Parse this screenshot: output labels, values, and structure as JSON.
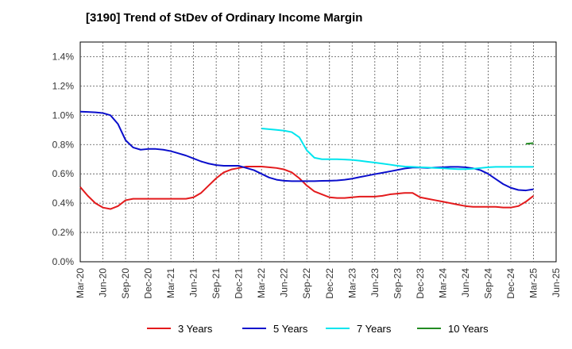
{
  "chart_data": {
    "type": "line",
    "title": "[3190]  Trend of StDev of Ordinary Income Margin",
    "xlabel": "",
    "ylabel": "",
    "x_ticks": [
      "Mar-20",
      "Jun-20",
      "Sep-20",
      "Dec-20",
      "Mar-21",
      "Jun-21",
      "Sep-21",
      "Dec-21",
      "Mar-22",
      "Jun-22",
      "Sep-22",
      "Dec-22",
      "Mar-23",
      "Jun-23",
      "Sep-23",
      "Dec-23",
      "Mar-24",
      "Jun-24",
      "Sep-24",
      "Dec-24",
      "Mar-25",
      "Jun-25"
    ],
    "y_ticks": [
      "0.0%",
      "0.2%",
      "0.4%",
      "0.6%",
      "0.8%",
      "1.0%",
      "1.2%",
      "1.4%"
    ],
    "ylim": [
      0,
      1.5
    ],
    "grid": true,
    "legend_position": "bottom",
    "series": [
      {
        "name": "3 Years",
        "color": "#e31a1c",
        "x": [
          "Mar-20",
          "Apr-20",
          "May-20",
          "Jun-20",
          "Jul-20",
          "Aug-20",
          "Sep-20",
          "Oct-20",
          "Nov-20",
          "Dec-20",
          "Jan-21",
          "Feb-21",
          "Mar-21",
          "Apr-21",
          "May-21",
          "Jun-21",
          "Jul-21",
          "Aug-21",
          "Sep-21",
          "Oct-21",
          "Nov-21",
          "Dec-21",
          "Jan-22",
          "Feb-22",
          "Mar-22",
          "Apr-22",
          "May-22",
          "Jun-22",
          "Jul-22",
          "Aug-22",
          "Sep-22",
          "Oct-22",
          "Nov-22",
          "Dec-22",
          "Jan-23",
          "Feb-23",
          "Mar-23",
          "Apr-23",
          "May-23",
          "Jun-23",
          "Jul-23",
          "Aug-23",
          "Sep-23",
          "Oct-23",
          "Nov-23",
          "Dec-23",
          "Jan-24",
          "Feb-24",
          "Mar-24",
          "Apr-24",
          "May-24",
          "Jun-24",
          "Jul-24",
          "Aug-24",
          "Sep-24",
          "Oct-24",
          "Nov-24",
          "Dec-24",
          "Jan-25",
          "Feb-25",
          "Mar-25"
        ],
        "values": [
          0.51,
          0.45,
          0.4,
          0.37,
          0.36,
          0.38,
          0.42,
          0.43,
          0.43,
          0.43,
          0.43,
          0.43,
          0.43,
          0.43,
          0.43,
          0.44,
          0.47,
          0.52,
          0.57,
          0.61,
          0.63,
          0.64,
          0.65,
          0.65,
          0.65,
          0.645,
          0.64,
          0.63,
          0.61,
          0.57,
          0.52,
          0.48,
          0.46,
          0.44,
          0.435,
          0.435,
          0.44,
          0.445,
          0.445,
          0.445,
          0.45,
          0.46,
          0.465,
          0.47,
          0.47,
          0.44,
          0.43,
          0.42,
          0.41,
          0.4,
          0.39,
          0.38,
          0.375,
          0.375,
          0.375,
          0.375,
          0.37,
          0.37,
          0.38,
          0.41,
          0.45
        ]
      },
      {
        "name": "5 Years",
        "color": "#0a0ecc",
        "x": [
          "Mar-20",
          "Apr-20",
          "May-20",
          "Jun-20",
          "Jul-20",
          "Aug-20",
          "Sep-20",
          "Oct-20",
          "Nov-20",
          "Dec-20",
          "Jan-21",
          "Feb-21",
          "Mar-21",
          "Apr-21",
          "May-21",
          "Jun-21",
          "Jul-21",
          "Aug-21",
          "Sep-21",
          "Oct-21",
          "Nov-21",
          "Dec-21",
          "Jan-22",
          "Feb-22",
          "Mar-22",
          "Apr-22",
          "May-22",
          "Jun-22",
          "Jul-22",
          "Aug-22",
          "Sep-22",
          "Oct-22",
          "Nov-22",
          "Dec-22",
          "Jan-23",
          "Feb-23",
          "Mar-23",
          "Apr-23",
          "May-23",
          "Jun-23",
          "Jul-23",
          "Aug-23",
          "Sep-23",
          "Oct-23",
          "Nov-23",
          "Dec-23",
          "Jan-24",
          "Feb-24",
          "Mar-24",
          "Apr-24",
          "May-24",
          "Jun-24",
          "Jul-24",
          "Aug-24",
          "Sep-24",
          "Oct-24",
          "Nov-24",
          "Dec-24",
          "Jan-25",
          "Feb-25",
          "Mar-25"
        ],
        "values": [
          1.025,
          1.023,
          1.02,
          1.015,
          1.0,
          0.94,
          0.83,
          0.78,
          0.765,
          0.77,
          0.77,
          0.765,
          0.755,
          0.74,
          0.725,
          0.705,
          0.685,
          0.67,
          0.66,
          0.655,
          0.655,
          0.655,
          0.64,
          0.625,
          0.6,
          0.575,
          0.56,
          0.553,
          0.55,
          0.55,
          0.55,
          0.55,
          0.552,
          0.553,
          0.555,
          0.56,
          0.567,
          0.578,
          0.588,
          0.598,
          0.607,
          0.617,
          0.627,
          0.637,
          0.643,
          0.643,
          0.64,
          0.643,
          0.645,
          0.648,
          0.648,
          0.645,
          0.638,
          0.625,
          0.6,
          0.565,
          0.53,
          0.505,
          0.49,
          0.487,
          0.495
        ]
      },
      {
        "name": "7 Years",
        "color": "#00e5ee",
        "x": [
          "Mar-22",
          "Apr-22",
          "May-22",
          "Jun-22",
          "Jul-22",
          "Aug-22",
          "Sep-22",
          "Oct-22",
          "Nov-22",
          "Dec-22",
          "Jan-23",
          "Feb-23",
          "Mar-23",
          "Apr-23",
          "May-23",
          "Jun-23",
          "Jul-23",
          "Aug-23",
          "Sep-23",
          "Oct-23",
          "Nov-23",
          "Dec-23",
          "Jan-24",
          "Feb-24",
          "Mar-24",
          "Apr-24",
          "May-24",
          "Jun-24",
          "Jul-24",
          "Aug-24",
          "Sep-24",
          "Oct-24",
          "Nov-24",
          "Dec-24",
          "Jan-25",
          "Feb-25",
          "Mar-25"
        ],
        "values": [
          0.91,
          0.905,
          0.9,
          0.895,
          0.885,
          0.85,
          0.76,
          0.71,
          0.7,
          0.7,
          0.7,
          0.698,
          0.695,
          0.69,
          0.683,
          0.677,
          0.67,
          0.663,
          0.655,
          0.65,
          0.648,
          0.645,
          0.643,
          0.64,
          0.638,
          0.635,
          0.632,
          0.632,
          0.635,
          0.64,
          0.645,
          0.648,
          0.648,
          0.648,
          0.648,
          0.648,
          0.648
        ]
      },
      {
        "name": "10 Years",
        "color": "#228b22",
        "x": [
          "Feb-25",
          "Mar-25"
        ],
        "values": [
          0.805,
          0.81
        ]
      }
    ]
  }
}
